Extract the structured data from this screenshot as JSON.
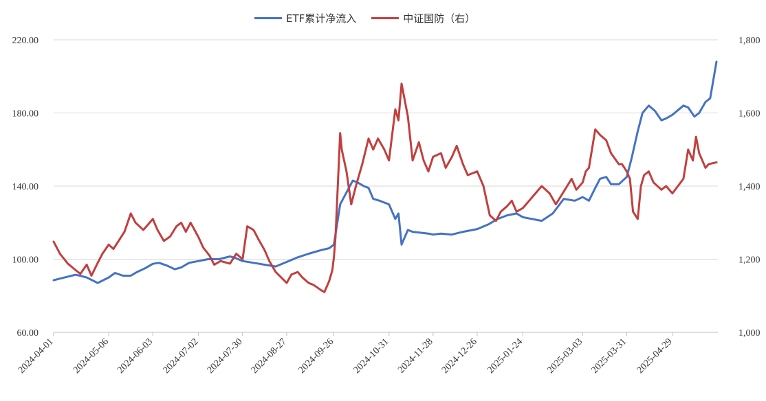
{
  "chart_data": {
    "type": "line",
    "legend_position": "top",
    "grid": true,
    "left_axis": {
      "ylim": [
        60,
        220
      ],
      "ticks": [
        "60.00",
        "100.00",
        "140.00",
        "180.00",
        "220.00"
      ],
      "tick_values": [
        60,
        100,
        140,
        180,
        220
      ]
    },
    "right_axis": {
      "ylim": [
        1000,
        1800
      ],
      "ticks": [
        "1,000",
        "1,200",
        "1,400",
        "1,600",
        "1,800"
      ],
      "tick_values": [
        1000,
        1200,
        1400,
        1600,
        1800
      ]
    },
    "x_tick_labels": [
      "2024-04-01",
      "2024-05-06",
      "2024-06-03",
      "2024-07-02",
      "2024-07-30",
      "2024-08-27",
      "2024-09-26",
      "2024-10-31",
      "2024-11-28",
      "2024-12-26",
      "2025-01-24",
      "2025-03-03",
      "2025-03-31",
      "2025-04-29"
    ],
    "series": [
      {
        "name": "ETF累计净流入",
        "axis": "left",
        "color": "#4472c4",
        "points": [
          [
            "2024-04-01",
            88.5
          ],
          [
            "2024-04-08",
            90
          ],
          [
            "2024-04-15",
            91.5
          ],
          [
            "2024-04-22",
            90
          ],
          [
            "2024-04-29",
            87
          ],
          [
            "2024-05-06",
            90
          ],
          [
            "2024-05-10",
            92.5
          ],
          [
            "2024-05-15",
            91
          ],
          [
            "2024-05-20",
            91
          ],
          [
            "2024-05-24",
            93
          ],
          [
            "2024-05-29",
            95
          ],
          [
            "2024-06-03",
            97.5
          ],
          [
            "2024-06-07",
            98
          ],
          [
            "2024-06-12",
            96.5
          ],
          [
            "2024-06-17",
            94.5
          ],
          [
            "2024-06-21",
            95.5
          ],
          [
            "2024-06-26",
            98
          ],
          [
            "2024-07-02",
            99
          ],
          [
            "2024-07-08",
            100
          ],
          [
            "2024-07-15",
            100
          ],
          [
            "2024-07-22",
            101.5
          ],
          [
            "2024-07-26",
            100.5
          ],
          [
            "2024-07-30",
            99
          ],
          [
            "2024-08-06",
            98
          ],
          [
            "2024-08-13",
            97
          ],
          [
            "2024-08-20",
            96
          ],
          [
            "2024-08-27",
            98.5
          ],
          [
            "2024-09-03",
            101
          ],
          [
            "2024-09-10",
            103
          ],
          [
            "2024-09-18",
            105
          ],
          [
            "2024-09-23",
            106
          ],
          [
            "2024-09-26",
            108
          ],
          [
            "2024-09-30",
            130
          ],
          [
            "2024-10-08",
            143
          ],
          [
            "2024-10-11",
            142
          ],
          [
            "2024-10-15",
            140
          ],
          [
            "2024-10-18",
            139
          ],
          [
            "2024-10-21",
            133
          ],
          [
            "2024-10-25",
            132
          ],
          [
            "2024-10-31",
            130
          ],
          [
            "2024-11-04",
            122
          ],
          [
            "2024-11-06",
            125
          ],
          [
            "2024-11-08",
            108
          ],
          [
            "2024-11-12",
            116
          ],
          [
            "2024-11-15",
            115
          ],
          [
            "2024-11-20",
            114.5
          ],
          [
            "2024-11-25",
            114
          ],
          [
            "2024-11-28",
            113.5
          ],
          [
            "2024-12-03",
            114
          ],
          [
            "2024-12-10",
            113.5
          ],
          [
            "2024-12-17",
            115
          ],
          [
            "2024-12-26",
            116.5
          ],
          [
            "2025-01-02",
            119
          ],
          [
            "2025-01-08",
            122
          ],
          [
            "2025-01-14",
            124
          ],
          [
            "2025-01-20",
            125
          ],
          [
            "2025-01-24",
            123
          ],
          [
            "2025-02-05",
            121
          ],
          [
            "2025-02-12",
            125
          ],
          [
            "2025-02-19",
            133
          ],
          [
            "2025-02-26",
            132
          ],
          [
            "2025-03-03",
            134
          ],
          [
            "2025-03-07",
            132
          ],
          [
            "2025-03-11",
            139
          ],
          [
            "2025-03-14",
            144
          ],
          [
            "2025-03-18",
            145
          ],
          [
            "2025-03-21",
            141
          ],
          [
            "2025-03-26",
            141
          ],
          [
            "2025-03-31",
            145
          ],
          [
            "2025-04-03",
            155
          ],
          [
            "2025-04-07",
            170
          ],
          [
            "2025-04-10",
            180
          ],
          [
            "2025-04-14",
            184
          ],
          [
            "2025-04-18",
            181
          ],
          [
            "2025-04-22",
            176
          ],
          [
            "2025-04-25",
            177
          ],
          [
            "2025-04-29",
            179
          ],
          [
            "2025-05-06",
            184
          ],
          [
            "2025-05-09",
            183
          ],
          [
            "2025-05-13",
            178
          ],
          [
            "2025-05-16",
            180
          ],
          [
            "2025-05-20",
            186
          ],
          [
            "2025-05-23",
            188
          ],
          [
            "2025-05-27",
            208
          ]
        ]
      },
      {
        "name": "中证国防（右）",
        "axis": "right",
        "color": "#c0403f",
        "points": [
          [
            "2024-04-01",
            1248
          ],
          [
            "2024-04-05",
            1215
          ],
          [
            "2024-04-10",
            1188
          ],
          [
            "2024-04-15",
            1170
          ],
          [
            "2024-04-18",
            1160
          ],
          [
            "2024-04-22",
            1185
          ],
          [
            "2024-04-25",
            1155
          ],
          [
            "2024-04-29",
            1190
          ],
          [
            "2024-05-02",
            1215
          ],
          [
            "2024-05-06",
            1240
          ],
          [
            "2024-05-09",
            1228
          ],
          [
            "2024-05-13",
            1255
          ],
          [
            "2024-05-16",
            1275
          ],
          [
            "2024-05-20",
            1325
          ],
          [
            "2024-05-23",
            1300
          ],
          [
            "2024-05-28",
            1280
          ],
          [
            "2024-06-03",
            1310
          ],
          [
            "2024-06-06",
            1280
          ],
          [
            "2024-06-10",
            1250
          ],
          [
            "2024-06-14",
            1262
          ],
          [
            "2024-06-18",
            1290
          ],
          [
            "2024-06-21",
            1300
          ],
          [
            "2024-06-24",
            1275
          ],
          [
            "2024-06-27",
            1300
          ],
          [
            "2024-07-02",
            1260
          ],
          [
            "2024-07-05",
            1232
          ],
          [
            "2024-07-09",
            1210
          ],
          [
            "2024-07-12",
            1185
          ],
          [
            "2024-07-16",
            1195
          ],
          [
            "2024-07-22",
            1188
          ],
          [
            "2024-07-26",
            1215
          ],
          [
            "2024-07-30",
            1200
          ],
          [
            "2024-08-02",
            1290
          ],
          [
            "2024-08-06",
            1280
          ],
          [
            "2024-08-09",
            1255
          ],
          [
            "2024-08-13",
            1225
          ],
          [
            "2024-08-16",
            1195
          ],
          [
            "2024-08-20",
            1165
          ],
          [
            "2024-08-27",
            1135
          ],
          [
            "2024-08-30",
            1158
          ],
          [
            "2024-09-03",
            1165
          ],
          [
            "2024-09-06",
            1150
          ],
          [
            "2024-09-10",
            1135
          ],
          [
            "2024-09-13",
            1130
          ],
          [
            "2024-09-18",
            1115
          ],
          [
            "2024-09-20",
            1110
          ],
          [
            "2024-09-23",
            1140
          ],
          [
            "2024-09-25",
            1170
          ],
          [
            "2024-09-26",
            1205
          ],
          [
            "2024-09-27",
            1260
          ],
          [
            "2024-09-30",
            1545
          ],
          [
            "2024-10-01",
            1500
          ],
          [
            "2024-10-04",
            1440
          ],
          [
            "2024-10-07",
            1350
          ],
          [
            "2024-10-10",
            1400
          ],
          [
            "2024-10-14",
            1460
          ],
          [
            "2024-10-18",
            1530
          ],
          [
            "2024-10-21",
            1500
          ],
          [
            "2024-10-24",
            1530
          ],
          [
            "2024-10-28",
            1500
          ],
          [
            "2024-10-31",
            1470
          ],
          [
            "2024-11-04",
            1610
          ],
          [
            "2024-11-06",
            1580
          ],
          [
            "2024-11-08",
            1680
          ],
          [
            "2024-11-12",
            1590
          ],
          [
            "2024-11-15",
            1470
          ],
          [
            "2024-11-19",
            1520
          ],
          [
            "2024-11-22",
            1470
          ],
          [
            "2024-11-25",
            1440
          ],
          [
            "2024-11-28",
            1480
          ],
          [
            "2024-12-03",
            1490
          ],
          [
            "2024-12-06",
            1450
          ],
          [
            "2024-12-10",
            1480
          ],
          [
            "2024-12-13",
            1510
          ],
          [
            "2024-12-17",
            1460
          ],
          [
            "2024-12-20",
            1430
          ],
          [
            "2024-12-26",
            1440
          ],
          [
            "2024-12-30",
            1400
          ],
          [
            "2025-01-03",
            1320
          ],
          [
            "2025-01-07",
            1305
          ],
          [
            "2025-01-10",
            1330
          ],
          [
            "2025-01-14",
            1345
          ],
          [
            "2025-01-17",
            1360
          ],
          [
            "2025-01-20",
            1330
          ],
          [
            "2025-01-24",
            1340
          ],
          [
            "2025-02-05",
            1400
          ],
          [
            "2025-02-10",
            1380
          ],
          [
            "2025-02-14",
            1350
          ],
          [
            "2025-02-19",
            1385
          ],
          [
            "2025-02-24",
            1420
          ],
          [
            "2025-02-27",
            1390
          ],
          [
            "2025-03-03",
            1410
          ],
          [
            "2025-03-05",
            1440
          ],
          [
            "2025-03-07",
            1450
          ],
          [
            "2025-03-11",
            1555
          ],
          [
            "2025-03-14",
            1540
          ],
          [
            "2025-03-18",
            1525
          ],
          [
            "2025-03-21",
            1490
          ],
          [
            "2025-03-26",
            1460
          ],
          [
            "2025-03-28",
            1460
          ],
          [
            "2025-03-31",
            1440
          ],
          [
            "2025-04-02",
            1420
          ],
          [
            "2025-04-04",
            1330
          ],
          [
            "2025-04-07",
            1310
          ],
          [
            "2025-04-09",
            1400
          ],
          [
            "2025-04-11",
            1430
          ],
          [
            "2025-04-14",
            1440
          ],
          [
            "2025-04-17",
            1410
          ],
          [
            "2025-04-22",
            1390
          ],
          [
            "2025-04-25",
            1400
          ],
          [
            "2025-04-29",
            1380
          ],
          [
            "2025-05-06",
            1420
          ],
          [
            "2025-05-09",
            1500
          ],
          [
            "2025-05-12",
            1470
          ],
          [
            "2025-05-14",
            1535
          ],
          [
            "2025-05-16",
            1490
          ],
          [
            "2025-05-20",
            1450
          ],
          [
            "2025-05-22",
            1460
          ],
          [
            "2025-05-27",
            1465
          ]
        ]
      }
    ]
  }
}
